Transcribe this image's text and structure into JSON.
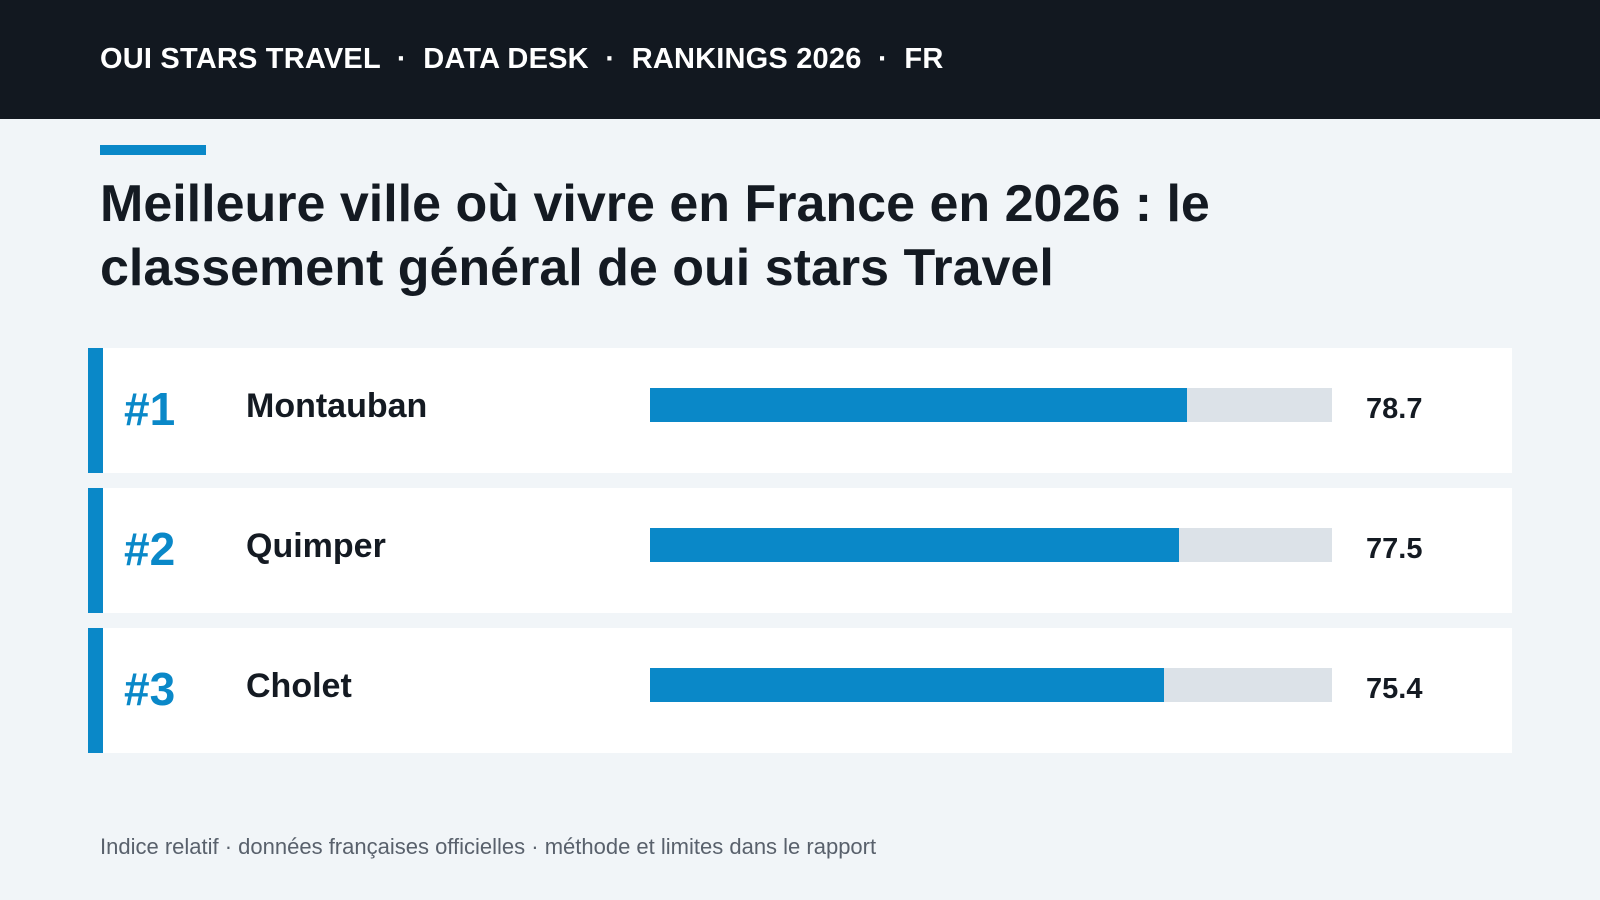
{
  "header": {
    "text": "OUI STARS TRAVEL  ·  DATA DESK  ·  RANKINGS 2026  ·  FR"
  },
  "title": "Meilleure ville où vivre en France en 2026 : le classement général de oui stars Travel",
  "footer": "Indice relatif · données françaises officielles · méthode et limites dans le rapport",
  "colors": {
    "accent": "#0a88c8",
    "header_bg": "#121820",
    "track": "#dce2e8",
    "page_bg": "#f1f5f8"
  },
  "chart_data": {
    "type": "bar",
    "orientation": "horizontal",
    "xlim": [
      0,
      100
    ],
    "grid": false,
    "items": [
      {
        "rank": "#1",
        "city": "Montauban",
        "value": 78.7,
        "value_label": "78.7"
      },
      {
        "rank": "#2",
        "city": "Quimper",
        "value": 77.5,
        "value_label": "77.5"
      },
      {
        "rank": "#3",
        "city": "Cholet",
        "value": 75.4,
        "value_label": "75.4"
      }
    ]
  }
}
